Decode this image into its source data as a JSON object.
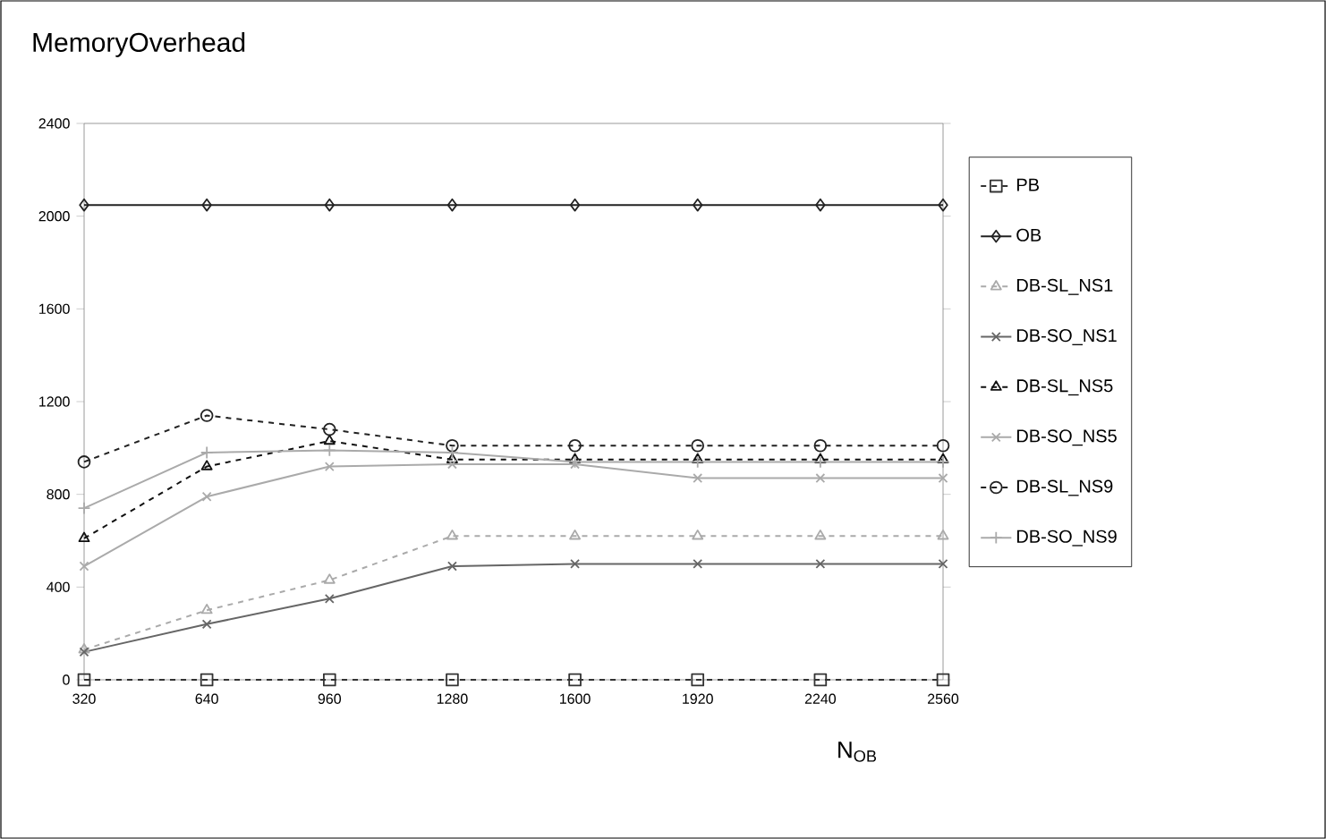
{
  "chart_data": {
    "type": "line",
    "title": "MemoryOverhead",
    "xlabel": "N$_{OB}$",
    "x": [
      320,
      640,
      960,
      1280,
      1600,
      1920,
      2240,
      2560
    ],
    "xlim": [
      320,
      2560
    ],
    "xticks": [
      320,
      640,
      960,
      1280,
      1600,
      1920,
      2240,
      2560
    ],
    "ylim": [
      0,
      2400
    ],
    "yticks": [
      0,
      400,
      800,
      1200,
      1600,
      2000,
      2400
    ],
    "grid": false,
    "legend": "right",
    "series": [
      {
        "name": "PB",
        "color": "#333333",
        "marker": "square",
        "line_style": "dashed",
        "values": [
          0,
          0,
          0,
          0,
          0,
          0,
          0,
          0
        ]
      },
      {
        "name": "OB",
        "color": "#222222",
        "marker": "diamond",
        "line_style": "solid",
        "values": [
          2048,
          2048,
          2048,
          2048,
          2048,
          2048,
          2048,
          2048
        ]
      },
      {
        "name": "DB-SL_NS1",
        "color": "#aaaaaa",
        "marker": "triangle",
        "line_style": "dashed",
        "values": [
          130,
          300,
          430,
          620,
          620,
          620,
          620,
          620
        ]
      },
      {
        "name": "DB-SO_NS1",
        "color": "#666666",
        "marker": "cross",
        "line_style": "solid",
        "values": [
          120,
          240,
          350,
          490,
          500,
          500,
          500,
          500
        ]
      },
      {
        "name": "DB-SL_NS5",
        "color": "#111111",
        "marker": "triangle",
        "line_style": "dashed",
        "values": [
          610,
          920,
          1030,
          950,
          950,
          950,
          950,
          950
        ]
      },
      {
        "name": "DB-SO_NS5",
        "color": "#aaaaaa",
        "marker": "cross",
        "line_style": "solid",
        "values": [
          490,
          790,
          920,
          930,
          930,
          870,
          870,
          870
        ]
      },
      {
        "name": "DB-SL_NS9",
        "color": "#222222",
        "marker": "circle",
        "line_style": "dashed",
        "values": [
          940,
          1140,
          1080,
          1010,
          1010,
          1010,
          1010,
          1010
        ]
      },
      {
        "name": "DB-SO_NS9",
        "color": "#aaaaaa",
        "marker": "plus",
        "line_style": "solid",
        "values": [
          740,
          980,
          990,
          980,
          940,
          940,
          940,
          940
        ]
      }
    ]
  }
}
